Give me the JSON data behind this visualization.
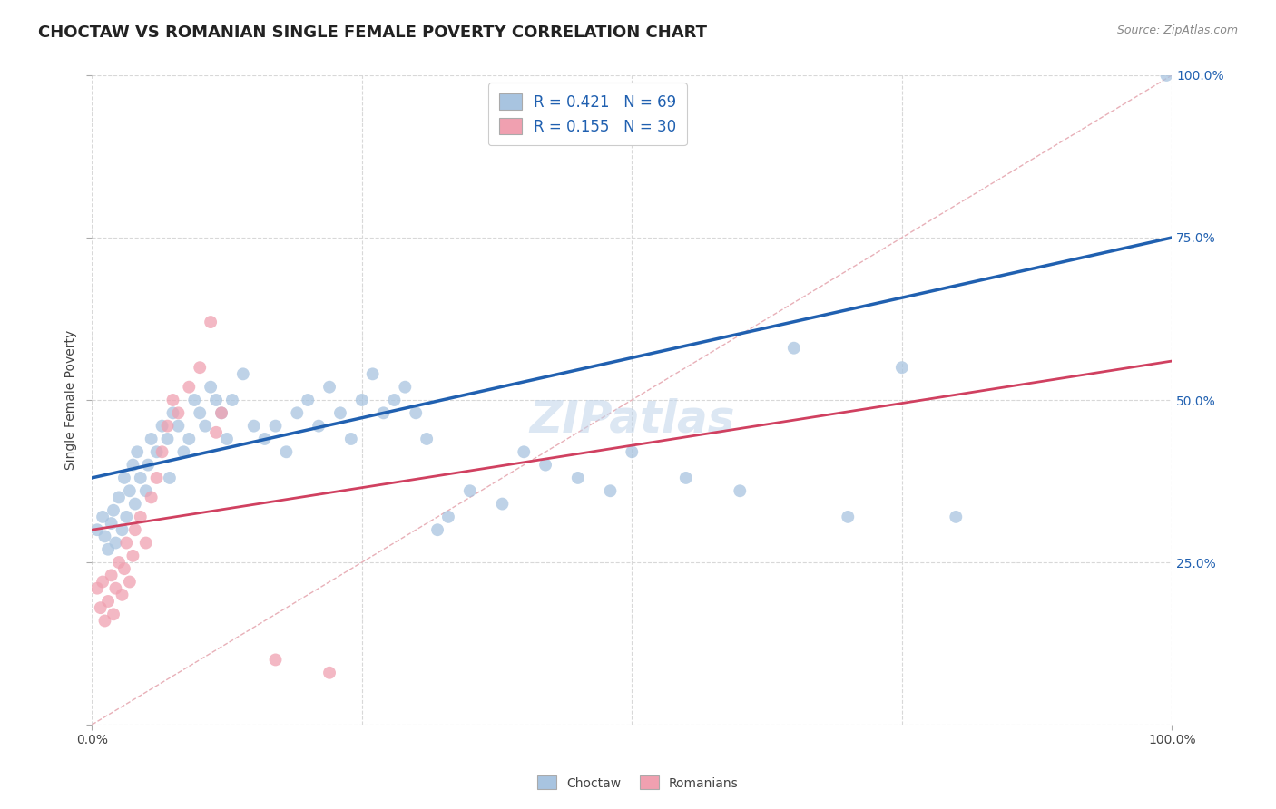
{
  "title": "CHOCTAW VS ROMANIAN SINGLE FEMALE POVERTY CORRELATION CHART",
  "source": "Source: ZipAtlas.com",
  "ylabel": "Single Female Poverty",
  "watermark": "ZIPatlas",
  "choctaw_R": "0.421",
  "choctaw_N": "69",
  "romanian_R": "0.155",
  "romanian_N": "30",
  "choctaw_color": "#a8c4e0",
  "choctaw_line_color": "#2060b0",
  "romanian_color": "#f0a0b0",
  "romanian_line_color": "#d04060",
  "diagonal_color": "#e8b0b8",
  "background_color": "#ffffff",
  "grid_color": "#d8d8d8",
  "choctaw_points": [
    [
      0.5,
      30
    ],
    [
      1.0,
      32
    ],
    [
      1.2,
      29
    ],
    [
      1.5,
      27
    ],
    [
      1.8,
      31
    ],
    [
      2.0,
      33
    ],
    [
      2.2,
      28
    ],
    [
      2.5,
      35
    ],
    [
      2.8,
      30
    ],
    [
      3.0,
      38
    ],
    [
      3.2,
      32
    ],
    [
      3.5,
      36
    ],
    [
      3.8,
      40
    ],
    [
      4.0,
      34
    ],
    [
      4.2,
      42
    ],
    [
      4.5,
      38
    ],
    [
      5.0,
      36
    ],
    [
      5.2,
      40
    ],
    [
      5.5,
      44
    ],
    [
      6.0,
      42
    ],
    [
      6.5,
      46
    ],
    [
      7.0,
      44
    ],
    [
      7.2,
      38
    ],
    [
      7.5,
      48
    ],
    [
      8.0,
      46
    ],
    [
      8.5,
      42
    ],
    [
      9.0,
      44
    ],
    [
      9.5,
      50
    ],
    [
      10.0,
      48
    ],
    [
      10.5,
      46
    ],
    [
      11.0,
      52
    ],
    [
      11.5,
      50
    ],
    [
      12.0,
      48
    ],
    [
      12.5,
      44
    ],
    [
      13.0,
      50
    ],
    [
      14.0,
      54
    ],
    [
      15.0,
      46
    ],
    [
      16.0,
      44
    ],
    [
      17.0,
      46
    ],
    [
      18.0,
      42
    ],
    [
      19.0,
      48
    ],
    [
      20.0,
      50
    ],
    [
      21.0,
      46
    ],
    [
      22.0,
      52
    ],
    [
      23.0,
      48
    ],
    [
      24.0,
      44
    ],
    [
      25.0,
      50
    ],
    [
      26.0,
      54
    ],
    [
      27.0,
      48
    ],
    [
      28.0,
      50
    ],
    [
      29.0,
      52
    ],
    [
      30.0,
      48
    ],
    [
      31.0,
      44
    ],
    [
      32.0,
      30
    ],
    [
      33.0,
      32
    ],
    [
      35.0,
      36
    ],
    [
      38.0,
      34
    ],
    [
      40.0,
      42
    ],
    [
      42.0,
      40
    ],
    [
      45.0,
      38
    ],
    [
      48.0,
      36
    ],
    [
      50.0,
      42
    ],
    [
      55.0,
      38
    ],
    [
      60.0,
      36
    ],
    [
      65.0,
      58
    ],
    [
      70.0,
      32
    ],
    [
      75.0,
      55
    ],
    [
      80.0,
      32
    ],
    [
      99.5,
      100
    ]
  ],
  "romanian_points": [
    [
      0.5,
      21
    ],
    [
      0.8,
      18
    ],
    [
      1.0,
      22
    ],
    [
      1.2,
      16
    ],
    [
      1.5,
      19
    ],
    [
      1.8,
      23
    ],
    [
      2.0,
      17
    ],
    [
      2.2,
      21
    ],
    [
      2.5,
      25
    ],
    [
      2.8,
      20
    ],
    [
      3.0,
      24
    ],
    [
      3.2,
      28
    ],
    [
      3.5,
      22
    ],
    [
      3.8,
      26
    ],
    [
      4.0,
      30
    ],
    [
      4.5,
      32
    ],
    [
      5.0,
      28
    ],
    [
      5.5,
      35
    ],
    [
      6.0,
      38
    ],
    [
      6.5,
      42
    ],
    [
      7.0,
      46
    ],
    [
      7.5,
      50
    ],
    [
      8.0,
      48
    ],
    [
      9.0,
      52
    ],
    [
      10.0,
      55
    ],
    [
      11.0,
      62
    ],
    [
      11.5,
      45
    ],
    [
      12.0,
      48
    ],
    [
      17.0,
      10
    ],
    [
      22.0,
      8
    ]
  ],
  "choctaw_line_x": [
    0,
    100
  ],
  "choctaw_line_y": [
    38,
    75
  ],
  "romanian_line_x": [
    0,
    100
  ],
  "romanian_line_y": [
    30,
    56
  ],
  "diagonal_line_x": [
    0,
    100
  ],
  "diagonal_line_y": [
    0,
    100
  ],
  "xlim": [
    0,
    100
  ],
  "ylim": [
    0,
    100
  ],
  "yticks": [
    0,
    25,
    50,
    75,
    100
  ],
  "ytick_labels_right": [
    "",
    "25.0%",
    "50.0%",
    "75.0%",
    "100.0%"
  ],
  "xtick_left": "0.0%",
  "xtick_right": "100.0%",
  "title_fontsize": 13,
  "label_fontsize": 10,
  "tick_fontsize": 10,
  "legend_fontsize": 12,
  "watermark_fontsize": 36,
  "source_fontsize": 9,
  "marker_size": 100
}
